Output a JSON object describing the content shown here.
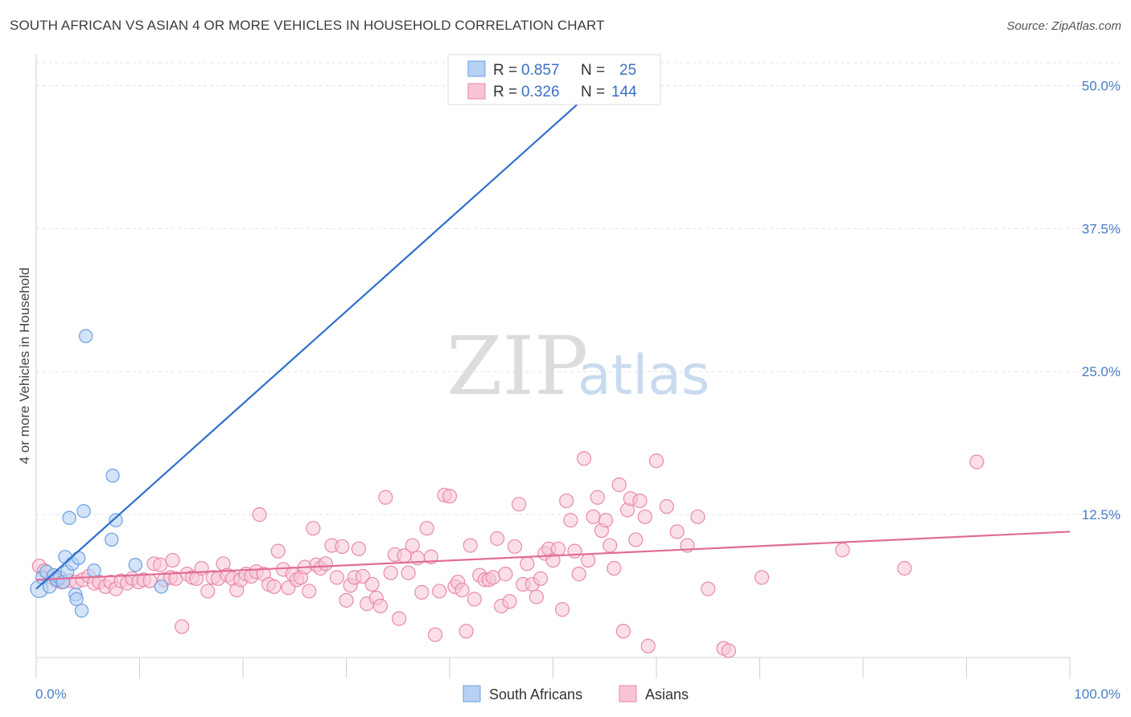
{
  "title": "SOUTH AFRICAN VS ASIAN 4 OR MORE VEHICLES IN HOUSEHOLD CORRELATION CHART",
  "source": "Source: ZipAtlas.com",
  "watermark": {
    "part1": "ZIP",
    "part2": "atlas"
  },
  "colors": {
    "blue": "#6a9fe0",
    "blue_fill": "#b7d1f3",
    "blue_line": "#2e6fcf",
    "pink": "#e889aa",
    "pink_fill": "#f7c4d6",
    "pink_line": "#e06c98"
  },
  "chart_data": {
    "type": "scatter",
    "ylabel": "4 or more Vehicles in Household",
    "xlim": [
      0,
      100
    ],
    "ylim": [
      0,
      52
    ],
    "x_tick_labels": [
      {
        "v": 0,
        "label": "0.0%"
      },
      {
        "v": 100,
        "label": "100.0%"
      }
    ],
    "y_tick_labels": [
      {
        "v": 12.5,
        "label": "12.5%"
      },
      {
        "v": 25,
        "label": "25.0%"
      },
      {
        "v": 37.5,
        "label": "37.5%"
      },
      {
        "v": 50,
        "label": "50.0%"
      }
    ],
    "legend": {
      "rows": [
        {
          "r_label": "R =",
          "r_value": "0.857",
          "n_label": "N =",
          "n_value": "25"
        },
        {
          "r_label": "R =",
          "r_value": "0.326",
          "n_label": "N =",
          "n_value": "144"
        }
      ]
    },
    "series": [
      {
        "name": "South Africans",
        "trend": [
          [
            0,
            6.0
          ],
          [
            55,
            50.5
          ]
        ],
        "points": [
          [
            0.3,
            6.0
          ],
          [
            0.6,
            7.0
          ],
          [
            1.0,
            7.5
          ],
          [
            1.3,
            6.2
          ],
          [
            1.7,
            7.2
          ],
          [
            2.0,
            6.8
          ],
          [
            2.3,
            7.0
          ],
          [
            2.6,
            6.6
          ],
          [
            2.8,
            8.8
          ],
          [
            3.0,
            7.5
          ],
          [
            3.2,
            12.2
          ],
          [
            3.5,
            8.2
          ],
          [
            3.8,
            5.5
          ],
          [
            3.9,
            5.1
          ],
          [
            4.1,
            8.7
          ],
          [
            4.4,
            4.1
          ],
          [
            4.6,
            12.8
          ],
          [
            4.8,
            28.1
          ],
          [
            5.6,
            7.6
          ],
          [
            7.3,
            10.3
          ],
          [
            7.4,
            15.9
          ],
          [
            7.7,
            12.0
          ],
          [
            9.6,
            8.1
          ],
          [
            12.1,
            6.2
          ],
          [
            54.8,
            50.0
          ]
        ],
        "sizes": [
          12,
          9,
          9,
          9,
          9,
          9,
          9,
          9,
          9,
          9,
          9,
          9,
          9,
          9,
          9,
          9,
          9,
          9,
          9,
          9,
          9,
          9,
          9,
          9,
          9
        ]
      },
      {
        "name": "Asians",
        "trend": [
          [
            0,
            6.8
          ],
          [
            100,
            11.0
          ]
        ],
        "points": [
          [
            0.3,
            8.0
          ],
          [
            0.8,
            7.6
          ],
          [
            1.5,
            7.0
          ],
          [
            2.0,
            6.7
          ],
          [
            2.5,
            6.6
          ],
          [
            3.2,
            6.7
          ],
          [
            3.9,
            6.6
          ],
          [
            4.5,
            6.8
          ],
          [
            5.1,
            7.1
          ],
          [
            5.6,
            6.5
          ],
          [
            6.1,
            6.6
          ],
          [
            6.7,
            6.2
          ],
          [
            7.2,
            6.6
          ],
          [
            7.7,
            6.0
          ],
          [
            8.2,
            6.7
          ],
          [
            8.8,
            6.5
          ],
          [
            9.3,
            6.9
          ],
          [
            9.9,
            6.6
          ],
          [
            10.4,
            6.8
          ],
          [
            11.0,
            6.7
          ],
          [
            11.4,
            8.2
          ],
          [
            12.0,
            8.1
          ],
          [
            12.4,
            6.8
          ],
          [
            13.0,
            7.0
          ],
          [
            13.5,
            6.9
          ],
          [
            13.2,
            8.5
          ],
          [
            14.1,
            2.7
          ],
          [
            14.6,
            7.3
          ],
          [
            15.1,
            7.0
          ],
          [
            15.5,
            6.9
          ],
          [
            16.0,
            7.8
          ],
          [
            16.6,
            5.8
          ],
          [
            17.1,
            7.0
          ],
          [
            17.6,
            6.9
          ],
          [
            18.1,
            8.2
          ],
          [
            18.5,
            7.2
          ],
          [
            19.0,
            6.9
          ],
          [
            19.4,
            5.9
          ],
          [
            19.8,
            6.8
          ],
          [
            20.3,
            7.3
          ],
          [
            20.8,
            7.1
          ],
          [
            21.3,
            7.5
          ],
          [
            21.6,
            12.5
          ],
          [
            22.0,
            7.3
          ],
          [
            22.5,
            6.4
          ],
          [
            23.0,
            6.2
          ],
          [
            23.4,
            9.3
          ],
          [
            23.9,
            7.7
          ],
          [
            24.4,
            6.1
          ],
          [
            24.8,
            7.3
          ],
          [
            25.2,
            6.8
          ],
          [
            25.6,
            7.0
          ],
          [
            26.0,
            7.9
          ],
          [
            26.4,
            5.8
          ],
          [
            26.8,
            11.3
          ],
          [
            27.1,
            8.1
          ],
          [
            27.5,
            7.8
          ],
          [
            28.0,
            8.2
          ],
          [
            28.6,
            9.8
          ],
          [
            29.1,
            7.0
          ],
          [
            29.6,
            9.7
          ],
          [
            30.0,
            5.0
          ],
          [
            30.4,
            6.3
          ],
          [
            30.8,
            7.0
          ],
          [
            31.2,
            9.5
          ],
          [
            31.6,
            7.1
          ],
          [
            32.0,
            4.7
          ],
          [
            32.5,
            6.4
          ],
          [
            32.9,
            5.2
          ],
          [
            33.3,
            4.5
          ],
          [
            33.8,
            14.0
          ],
          [
            34.3,
            7.4
          ],
          [
            34.7,
            9.0
          ],
          [
            35.1,
            3.4
          ],
          [
            35.6,
            8.9
          ],
          [
            36.0,
            7.4
          ],
          [
            36.4,
            9.8
          ],
          [
            36.9,
            8.7
          ],
          [
            37.3,
            5.7
          ],
          [
            37.8,
            11.3
          ],
          [
            38.2,
            8.8
          ],
          [
            38.6,
            2.0
          ],
          [
            39.0,
            5.8
          ],
          [
            39.5,
            14.2
          ],
          [
            40.0,
            14.1
          ],
          [
            40.5,
            6.2
          ],
          [
            40.8,
            6.6
          ],
          [
            41.2,
            5.9
          ],
          [
            41.6,
            2.3
          ],
          [
            42.0,
            9.8
          ],
          [
            42.4,
            5.1
          ],
          [
            42.9,
            7.2
          ],
          [
            43.4,
            6.8
          ],
          [
            43.8,
            6.8
          ],
          [
            44.2,
            7.0
          ],
          [
            44.6,
            10.4
          ],
          [
            45.0,
            4.5
          ],
          [
            45.4,
            7.3
          ],
          [
            45.8,
            4.9
          ],
          [
            46.3,
            9.7
          ],
          [
            46.7,
            13.4
          ],
          [
            47.1,
            6.4
          ],
          [
            47.5,
            8.2
          ],
          [
            48.0,
            6.4
          ],
          [
            48.4,
            5.3
          ],
          [
            48.8,
            6.9
          ],
          [
            49.2,
            9.1
          ],
          [
            49.6,
            9.5
          ],
          [
            50.0,
            8.5
          ],
          [
            50.5,
            9.5
          ],
          [
            50.9,
            4.2
          ],
          [
            51.3,
            13.7
          ],
          [
            51.7,
            12.0
          ],
          [
            52.1,
            9.3
          ],
          [
            52.5,
            7.3
          ],
          [
            53.0,
            17.4
          ],
          [
            53.4,
            8.5
          ],
          [
            53.9,
            12.3
          ],
          [
            54.3,
            14.0
          ],
          [
            54.7,
            11.1
          ],
          [
            55.1,
            12.0
          ],
          [
            55.5,
            9.8
          ],
          [
            55.9,
            7.8
          ],
          [
            56.4,
            15.1
          ],
          [
            56.8,
            2.3
          ],
          [
            57.2,
            12.9
          ],
          [
            57.5,
            13.9
          ],
          [
            58.0,
            10.3
          ],
          [
            58.4,
            13.7
          ],
          [
            58.9,
            12.3
          ],
          [
            59.2,
            1.0
          ],
          [
            60.0,
            17.2
          ],
          [
            61.0,
            13.2
          ],
          [
            62.0,
            11.0
          ],
          [
            63.0,
            9.8
          ],
          [
            64.0,
            12.3
          ],
          [
            66.5,
            0.8
          ],
          [
            78.0,
            9.4
          ],
          [
            84.0,
            7.8
          ],
          [
            91.0,
            17.1
          ],
          [
            70.2,
            7.0
          ],
          [
            65.0,
            6.0
          ],
          [
            67.0,
            0.6
          ]
        ]
      }
    ]
  }
}
